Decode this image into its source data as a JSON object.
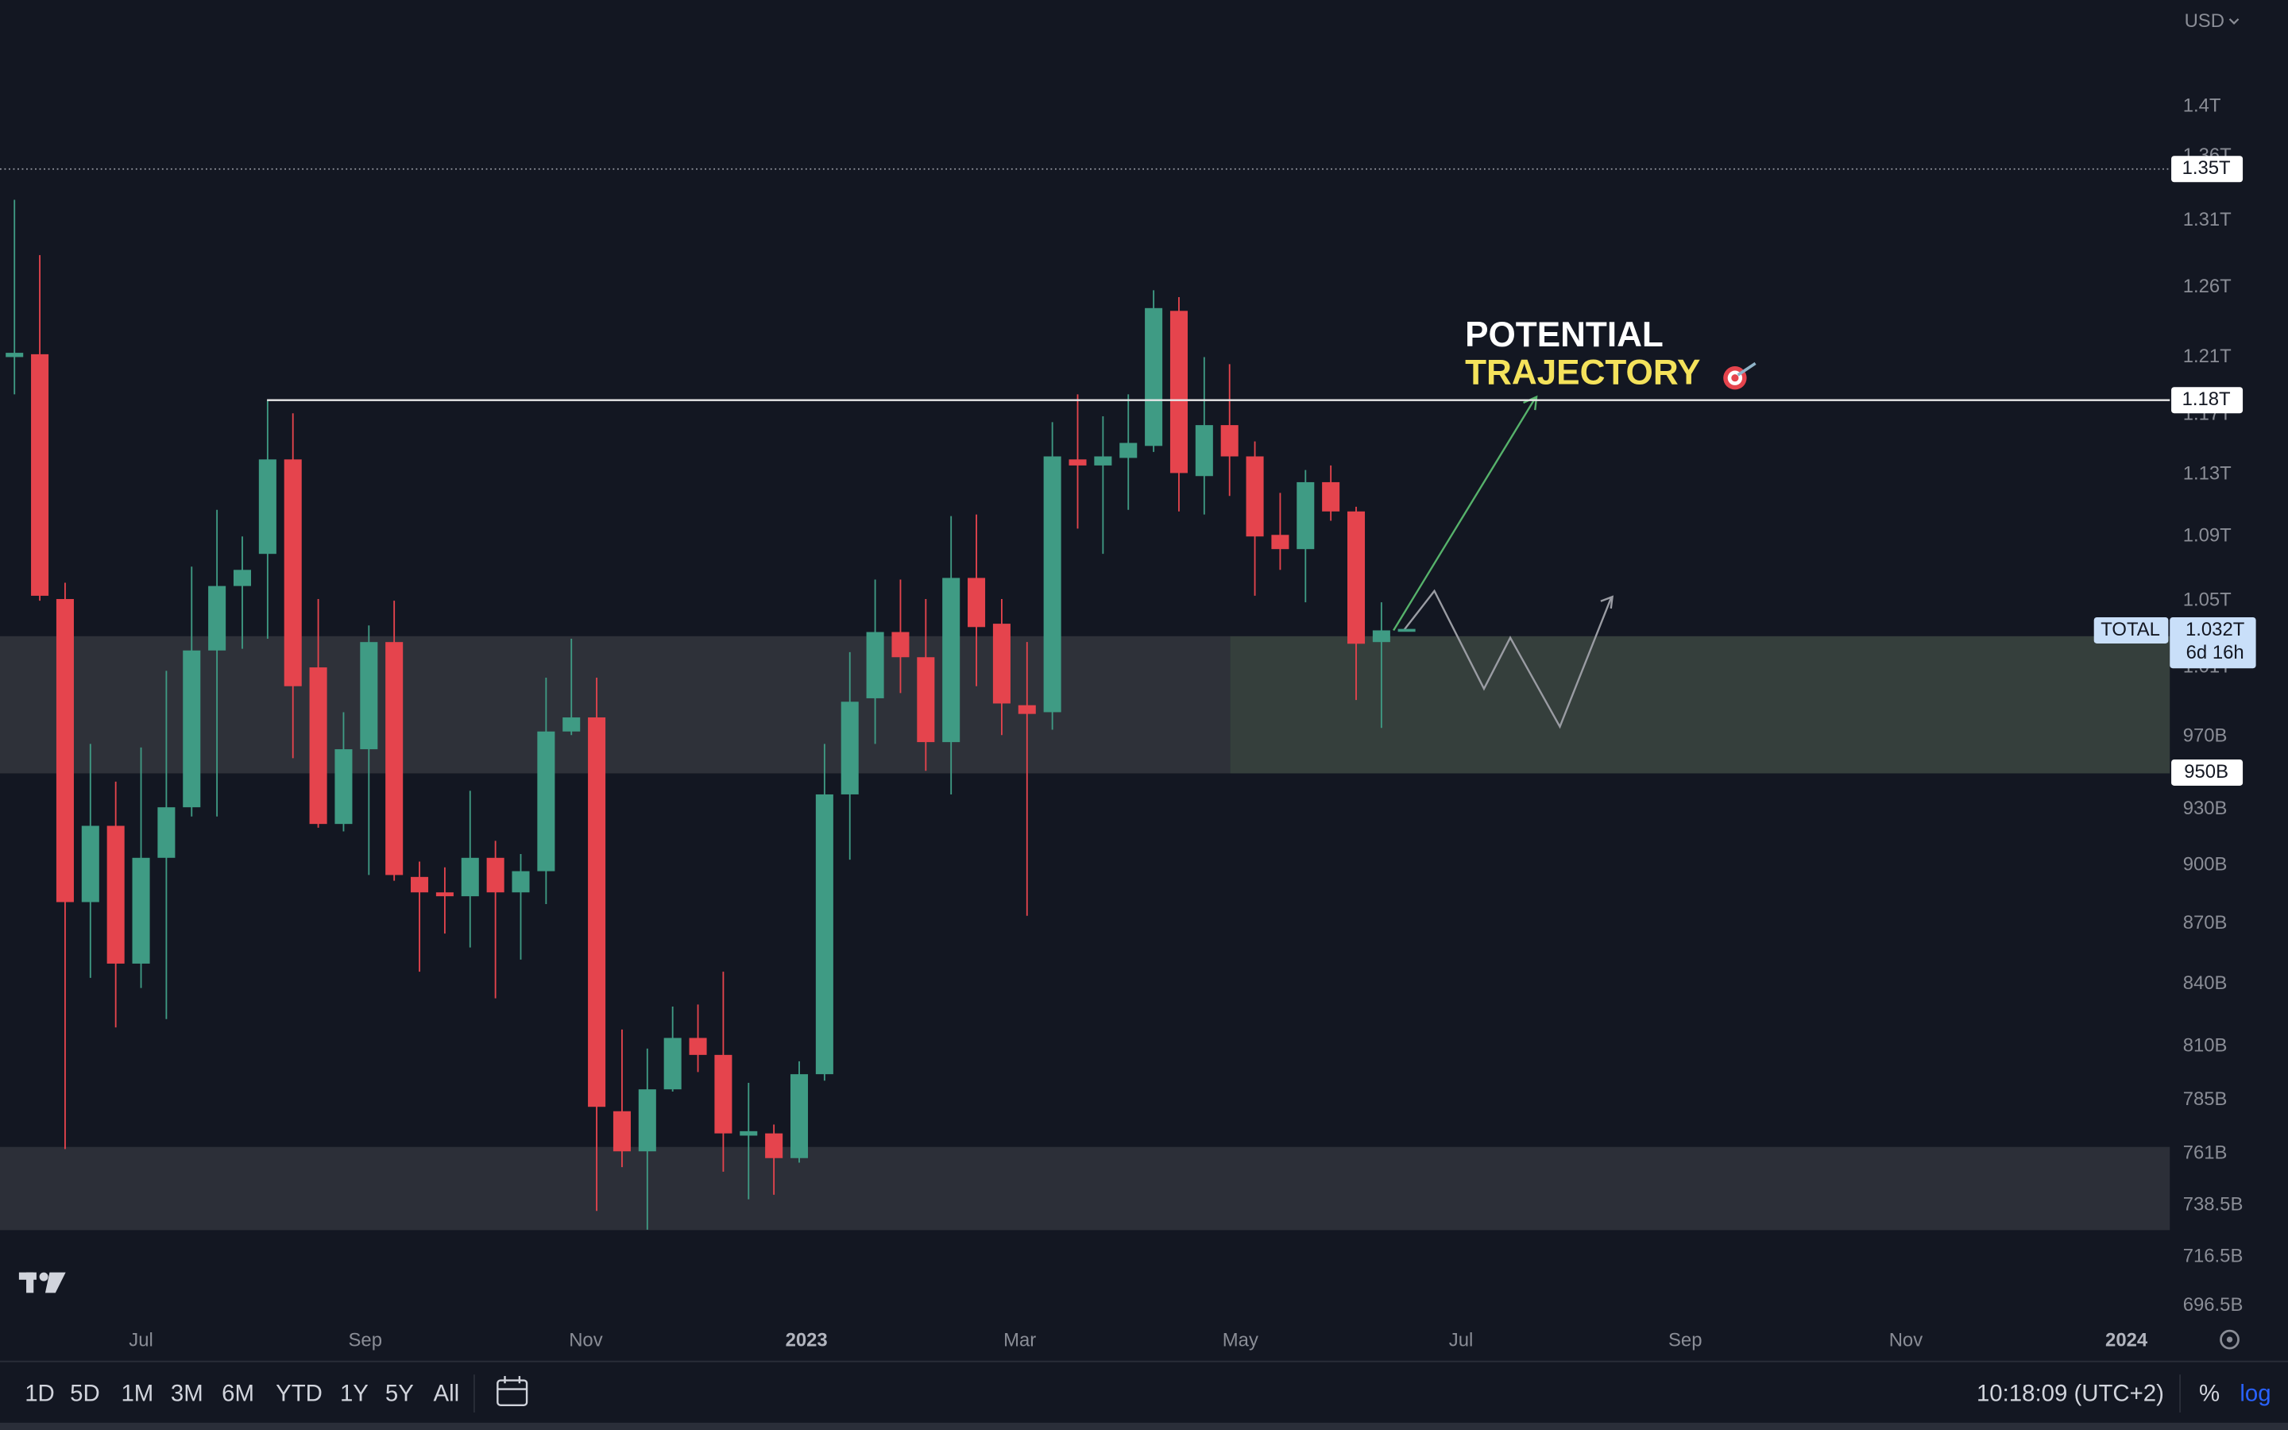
{
  "chart_data": {
    "type": "candlestick",
    "currency": "USD",
    "annotation": [
      "POTENTIAL",
      "TRAJECTORY"
    ],
    "x": [
      146,
      153,
      160,
      167,
      174,
      181,
      188,
      195,
      202,
      209,
      216,
      223,
      230,
      237,
      244,
      251,
      258,
      265,
      272,
      279,
      286,
      293,
      300,
      307,
      314,
      321,
      328,
      335,
      342,
      349,
      356,
      363,
      370,
      377,
      384,
      391,
      398,
      405,
      412,
      419,
      426,
      433,
      440,
      447,
      454,
      461,
      468,
      475,
      482,
      489,
      496,
      503,
      510,
      517,
      524
    ],
    "open": [
      1210,
      1212,
      1051,
      881,
      921,
      850,
      904,
      931,
      1020,
      1059,
      1079,
      1140,
      1010,
      922,
      963,
      1025,
      894,
      886,
      884,
      904,
      886,
      897,
      973,
      981,
      780,
      762,
      790,
      814,
      806,
      769,
      770,
      759,
      797,
      938,
      992,
      1031,
      1016,
      967,
      1064,
      1036,
      988,
      984,
      1140,
      1136,
      1141,
      1149,
      1243,
      1129,
      1163,
      1142,
      1091,
      1082,
      1125,
      1106,
      1025
    ],
    "high": [
      1326,
      1284,
      1061,
      966,
      945,
      964,
      1008,
      1071,
      1107,
      1090,
      1180,
      1171,
      1051,
      984,
      1035,
      1050,
      902,
      899,
      940,
      913,
      906,
      1004,
      1027,
      1004,
      818,
      809,
      829,
      830,
      846,
      793,
      774,
      803,
      966,
      1019,
      1063,
      1063,
      1051,
      1103,
      1104,
      1051,
      1025,
      1165,
      1184,
      1169,
      1184,
      1258,
      1253,
      1210,
      1205,
      1152,
      1118,
      1133,
      1136,
      1109,
      1049
    ],
    "low": [
      1184,
      1050,
      763,
      843,
      819,
      838,
      823,
      926,
      926,
      1021,
      1027,
      958,
      920,
      918,
      895,
      892,
      846,
      865,
      858,
      833,
      852,
      880,
      971,
      736,
      755,
      728,
      789,
      798,
      753,
      741,
      743,
      757,
      794,
      903,
      966,
      995,
      951,
      938,
      999,
      971,
      874,
      974,
      1095,
      1079,
      1107,
      1145,
      1106,
      1104,
      1116,
      1053,
      1069,
      1049,
      1100,
      991,
      975
    ],
    "close": [
      1213,
      1053,
      881,
      921,
      850,
      904,
      931,
      1020,
      1059,
      1069,
      1140,
      999,
      922,
      963,
      1025,
      895,
      886,
      884,
      904,
      886,
      897,
      973,
      981,
      782,
      762,
      790,
      814,
      806,
      770,
      771,
      759,
      797,
      938,
      990,
      1031,
      1016,
      967,
      1064,
      1034,
      989,
      983,
      1142,
      1136,
      1142,
      1151,
      1245,
      1131,
      1163,
      1142,
      1090,
      1082,
      1125,
      1106,
      1024,
      1032
    ],
    "up_color": "#3f9b84",
    "down_color": "#e5444d",
    "log": true,
    "xlim": [
      142,
      742
    ],
    "xticks": [
      {
        "value": 181,
        "label": "Jul"
      },
      {
        "value": 243,
        "label": "Sep"
      },
      {
        "value": 304,
        "label": "Nov"
      },
      {
        "value": 365,
        "label": "2023"
      },
      {
        "value": 424,
        "label": "Mar"
      },
      {
        "value": 485,
        "label": "May"
      },
      {
        "value": 546,
        "label": "Jul"
      },
      {
        "value": 608,
        "label": "Sep"
      },
      {
        "value": 669,
        "label": "Nov"
      },
      {
        "value": 730,
        "label": "2024"
      }
    ],
    "ylim": [
      690.5,
      1489.6
    ],
    "yticks": [
      {
        "value": 1400,
        "label": "1.4T"
      },
      {
        "value": 1360,
        "label": "1.36T"
      },
      {
        "value": 1310,
        "label": "1.31T"
      },
      {
        "value": 1260,
        "label": "1.26T"
      },
      {
        "value": 1210,
        "label": "1.21T"
      },
      {
        "value": 1170,
        "label": "1.17T"
      },
      {
        "value": 1130,
        "label": "1.13T"
      },
      {
        "value": 1090,
        "label": "1.09T"
      },
      {
        "value": 1050,
        "label": "1.05T"
      },
      {
        "value": 1010,
        "label": "1.01T"
      },
      {
        "value": 970,
        "label": "970B"
      },
      {
        "value": 930,
        "label": "930B"
      },
      {
        "value": 900,
        "label": "900B"
      },
      {
        "value": 870,
        "label": "870B"
      },
      {
        "value": 840,
        "label": "840B"
      },
      {
        "value": 810,
        "label": "810B"
      },
      {
        "value": 785,
        "label": "785B"
      },
      {
        "value": 761,
        "label": "761B"
      },
      {
        "value": 738.5,
        "label": "738.5B"
      },
      {
        "value": 716.5,
        "label": "716.5B"
      },
      {
        "value": 696.5,
        "label": "696.5B"
      }
    ],
    "levels": [
      {
        "value": 1350,
        "label": "1.35T",
        "line": "dotted"
      },
      {
        "value": 1180,
        "label": "1.18T",
        "line": "solid"
      },
      {
        "value": 950,
        "label": "950B"
      }
    ],
    "current_price": {
      "name": "TOTAL",
      "value": 1032,
      "label": "1.032T",
      "countdown": "6d 16h"
    },
    "toolbar": {
      "ranges": [
        "1D",
        "5D",
        "1M",
        "3M",
        "6M",
        "YTD",
        "1Y",
        "5Y",
        "All"
      ],
      "clock": "10:18:09 (UTC+2)",
      "percent": "%",
      "log": "log"
    }
  }
}
